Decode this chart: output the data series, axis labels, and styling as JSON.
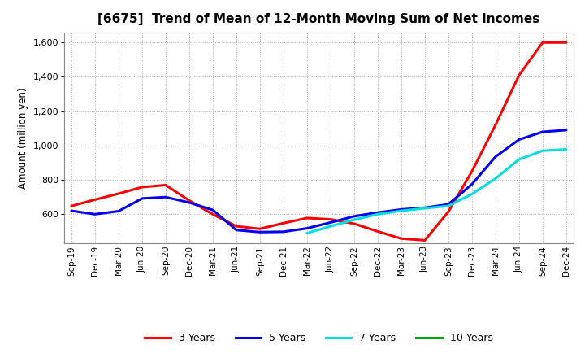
{
  "title": "[6675]  Trend of Mean of 12-Month Moving Sum of Net Incomes",
  "ylabel": "Amount (million yen)",
  "background_color": "#ffffff",
  "plot_bg_color": "#e8e8f0",
  "grid_color": "#aaaaaa",
  "ylim": [
    430,
    1660
  ],
  "yticks": [
    600,
    800,
    1000,
    1200,
    1400,
    1600
  ],
  "x_labels": [
    "Sep-19",
    "Dec-19",
    "Mar-20",
    "Jun-20",
    "Sep-20",
    "Dec-20",
    "Mar-21",
    "Jun-21",
    "Sep-21",
    "Dec-21",
    "Mar-22",
    "Jun-22",
    "Sep-22",
    "Dec-22",
    "Mar-23",
    "Jun-23",
    "Sep-23",
    "Dec-23",
    "Mar-24",
    "Jun-24",
    "Sep-24",
    "Dec-24"
  ],
  "series": {
    "3 Years": {
      "color": "#ff0000",
      "linewidth": 2.2,
      "data_x": [
        0,
        1,
        2,
        3,
        4,
        5,
        6,
        7,
        8,
        9,
        10,
        11,
        12,
        13,
        14,
        15,
        16,
        17,
        18,
        19,
        20,
        21
      ],
      "data_y": [
        648,
        685,
        720,
        758,
        770,
        680,
        600,
        530,
        515,
        548,
        578,
        570,
        545,
        500,
        458,
        448,
        615,
        850,
        1120,
        1410,
        1600,
        1600
      ]
    },
    "5 Years": {
      "color": "#0000ee",
      "linewidth": 2.2,
      "data_x": [
        0,
        1,
        2,
        3,
        4,
        5,
        6,
        7,
        8,
        9,
        10,
        11,
        12,
        13,
        14,
        15,
        16,
        17,
        18,
        19,
        20,
        21
      ],
      "data_y": [
        620,
        600,
        618,
        692,
        700,
        668,
        625,
        508,
        496,
        498,
        518,
        552,
        588,
        610,
        628,
        638,
        658,
        775,
        935,
        1035,
        1080,
        1090
      ]
    },
    "7 Years": {
      "color": "#00dddd",
      "linewidth": 2.2,
      "data_x": [
        10,
        11,
        12,
        13,
        14,
        15,
        16,
        17,
        18,
        19,
        20,
        21
      ],
      "data_y": [
        490,
        530,
        568,
        600,
        620,
        635,
        648,
        718,
        808,
        920,
        970,
        978
      ]
    },
    "10 Years": {
      "color": "#00aa00",
      "linewidth": 2.2,
      "data_x": [],
      "data_y": []
    }
  },
  "legend_entries": [
    "3 Years",
    "5 Years",
    "7 Years",
    "10 Years"
  ],
  "legend_colors": [
    "#ff0000",
    "#0000ee",
    "#00dddd",
    "#00aa00"
  ]
}
